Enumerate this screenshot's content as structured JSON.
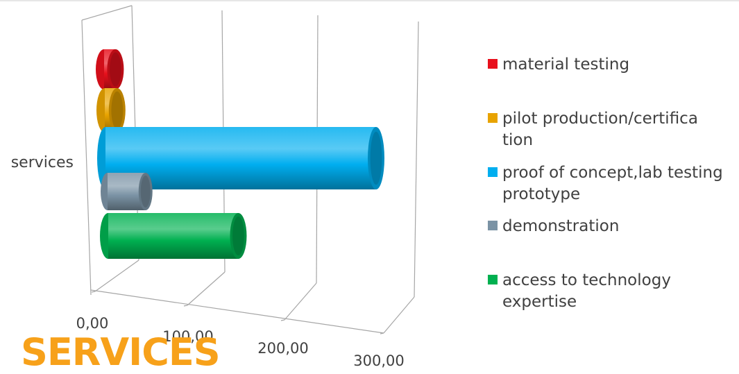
{
  "page_title": "SERVICES",
  "chart_data": {
    "type": "bar",
    "orientation": "horizontal",
    "style": "3d-cylinder",
    "categories": [
      "services"
    ],
    "series": [
      {
        "name": "material testing",
        "values": [
          12
        ],
        "color": "#e8101c"
      },
      {
        "name": "pilot production/certification",
        "values": [
          13
        ],
        "color": "#e8a300"
      },
      {
        "name": "proof of concept,lab testing prototype",
        "values": [
          285
        ],
        "color": "#00aeef"
      },
      {
        "name": "demonstration",
        "values": [
          40
        ],
        "color": "#7b93a5"
      },
      {
        "name": "access to technology expertise",
        "values": [
          137
        ],
        "color": "#00b050"
      }
    ],
    "xlim": [
      0,
      300
    ],
    "ticks": [
      "0,00",
      "100,00",
      "200,00",
      "300,00"
    ],
    "grid": true,
    "legend_position": "right"
  },
  "legend": [
    {
      "label": "material testing",
      "color": "#e8101c"
    },
    {
      "label": "pilot production/certification",
      "color": "#e8a300"
    },
    {
      "label": "proof of concept,lab testing prototype",
      "color": "#00aeef"
    },
    {
      "label": "demonstration",
      "color": "#7b93a5"
    },
    {
      "label": "access to technology expertise",
      "color": "#00b050"
    }
  ]
}
